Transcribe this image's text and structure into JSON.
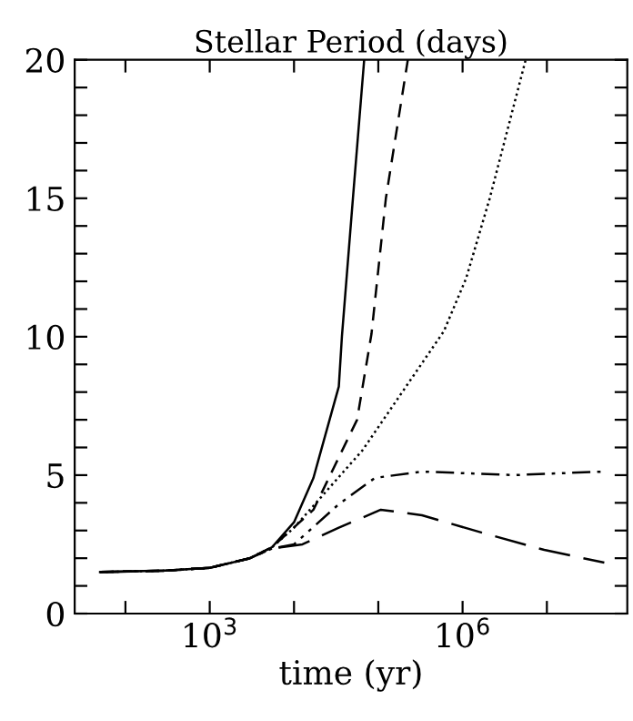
{
  "chart_data": {
    "type": "line",
    "title": "Stellar Period (days)",
    "xlabel": "time (yr)",
    "log": "x",
    "xlim": [
      25,
      90000000
    ],
    "ylim": [
      0,
      20
    ],
    "xticks": [
      {
        "value": 100,
        "label": null
      },
      {
        "value": 1000,
        "label": "10$^{3}$"
      },
      {
        "value": 10000,
        "label": null
      },
      {
        "value": 100000,
        "label": null
      },
      {
        "value": 1000000,
        "label": "10$^{6}$"
      },
      {
        "value": 10000000,
        "label": null
      }
    ],
    "yticks": [
      0,
      {
        "value": 1,
        "label": null
      },
      {
        "value": 2,
        "label": null
      },
      {
        "value": 3,
        "label": null
      },
      {
        "value": 4,
        "label": null
      },
      5,
      {
        "value": 6,
        "label": null
      },
      {
        "value": 7,
        "label": null
      },
      {
        "value": 8,
        "label": null
      },
      {
        "value": 9,
        "label": null
      },
      10,
      {
        "value": 11,
        "label": null
      },
      {
        "value": 12,
        "label": null
      },
      {
        "value": 13,
        "label": null
      },
      {
        "value": 14,
        "label": null
      },
      15,
      {
        "value": 16,
        "label": null
      },
      {
        "value": 17,
        "label": null
      },
      {
        "value": 18,
        "label": null
      },
      {
        "value": 19,
        "label": null
      },
      20
    ],
    "grid": false,
    "legend": false,
    "series": [
      {
        "color": "#000000",
        "line_style": "solid",
        "x": [
          50,
          300,
          1000,
          3000,
          5500,
          10000,
          17000,
          34000,
          37000,
          50000,
          68000
        ],
        "values": [
          1.5,
          1.55,
          1.65,
          2.0,
          2.4,
          3.3,
          4.9,
          8.2,
          10,
          15,
          20
        ]
      },
      {
        "color": "#000000",
        "line_style": "dashed",
        "x": [
          50,
          300,
          1000,
          3000,
          5500,
          17000,
          56000,
          83000,
          123000,
          224000
        ],
        "values": [
          1.5,
          1.55,
          1.65,
          2.0,
          2.4,
          3.75,
          7.0,
          10.1,
          15,
          20
        ]
      },
      {
        "color": "#000000",
        "line_style": "dotted",
        "x": [
          50,
          300,
          1000,
          3000,
          5500,
          10000,
          65000,
          600000,
          1100000,
          2100000,
          5600000
        ],
        "values": [
          1.5,
          1.55,
          1.65,
          2.0,
          2.4,
          3.1,
          5.9,
          10.2,
          12.1,
          15,
          20
        ]
      },
      {
        "color": "#000000",
        "line_style": "dashdotdot",
        "x": [
          50,
          300,
          1000,
          3000,
          5500,
          10000,
          34000,
          91000,
          330000,
          4000000,
          48000000
        ],
        "values": [
          1.5,
          1.55,
          1.65,
          2.0,
          2.35,
          2.5,
          3.95,
          4.9,
          5.13,
          5.0,
          5.13
        ]
      },
      {
        "color": "#000000",
        "line_style": "longdash",
        "x": [
          50,
          300,
          1000,
          3000,
          5500,
          12600,
          34000,
          107000,
          330000,
          1800000,
          9300000,
          48000000
        ],
        "values": [
          1.5,
          1.55,
          1.65,
          2.0,
          2.35,
          2.5,
          3.1,
          3.75,
          3.55,
          2.9,
          2.3,
          1.84
        ]
      }
    ]
  }
}
